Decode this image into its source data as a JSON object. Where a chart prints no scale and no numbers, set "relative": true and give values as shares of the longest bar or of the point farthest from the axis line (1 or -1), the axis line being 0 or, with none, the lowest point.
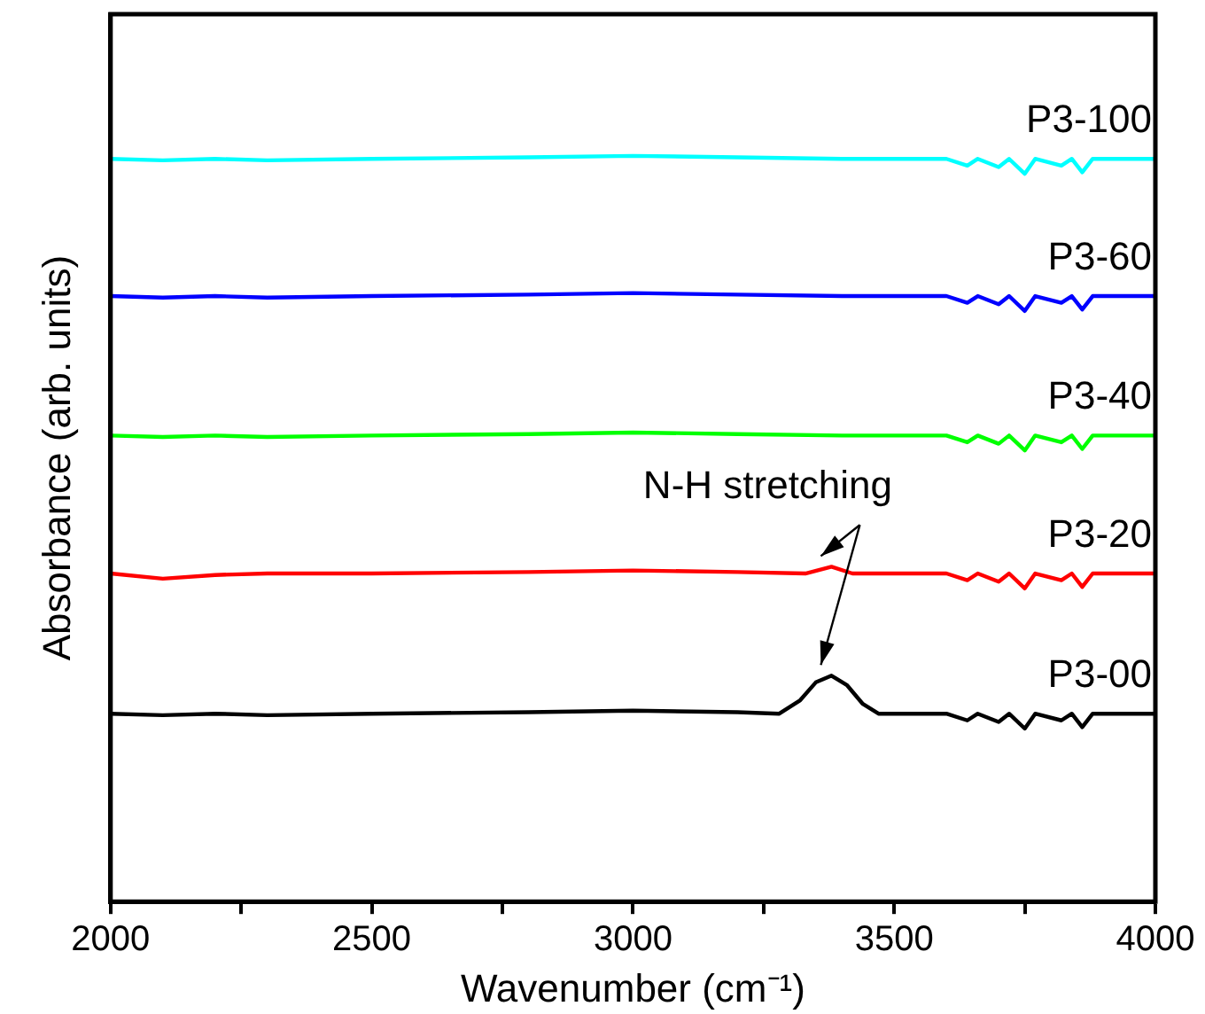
{
  "chart_data": {
    "type": "line",
    "xlabel": "Wavenumber (cm⁻¹)",
    "ylabel": "Absorbance (arb. units)",
    "relative": true,
    "xlim": [
      2000,
      4000
    ],
    "xticks": [
      2000,
      {
        "value": 2250,
        "label": null
      },
      2500,
      {
        "value": 2750,
        "label": null
      },
      3000,
      {
        "value": 3250,
        "label": null
      },
      3500,
      {
        "value": 3750,
        "label": null
      },
      4000
    ],
    "legend": false,
    "grid": false,
    "marker": "none",
    "line_style": "solid",
    "annotations": [
      {
        "text": "N-H stretching",
        "x": 3380,
        "y": 0.303
      }
    ],
    "series": [
      {
        "name": "P3-100",
        "color": "#00ffff",
        "x": [
          2000,
          2100,
          2200,
          2300,
          2500,
          2800,
          3000,
          3200,
          3400,
          3600,
          3640,
          3660,
          3700,
          3720,
          3750,
          3770,
          3820,
          3840,
          3860,
          3880,
          4000
        ],
        "values": [
          0.996,
          0.994,
          0.996,
          0.994,
          0.996,
          0.998,
          1,
          0.998,
          0.996,
          0.996,
          0.987,
          0.996,
          0.985,
          0.996,
          0.976,
          0.996,
          0.987,
          0.996,
          0.978,
          0.996,
          0.996
        ]
      },
      {
        "name": "P3-60",
        "color": "#0000ff",
        "x": [
          2000,
          2100,
          2200,
          2300,
          2500,
          2800,
          3000,
          3200,
          3400,
          3600,
          3640,
          3660,
          3700,
          3720,
          3750,
          3770,
          3820,
          3840,
          3860,
          3880,
          4000
        ],
        "values": [
          0.812,
          0.81,
          0.812,
          0.81,
          0.812,
          0.814,
          0.816,
          0.814,
          0.812,
          0.812,
          0.803,
          0.812,
          0.801,
          0.812,
          0.792,
          0.812,
          0.803,
          0.812,
          0.794,
          0.812,
          0.812
        ]
      },
      {
        "name": "P3-40",
        "color": "#00ff00",
        "x": [
          2000,
          2100,
          2200,
          2300,
          2500,
          2800,
          3000,
          3200,
          3400,
          3600,
          3640,
          3660,
          3700,
          3720,
          3750,
          3770,
          3820,
          3840,
          3860,
          3880,
          4000
        ],
        "values": [
          0.625,
          0.623,
          0.625,
          0.623,
          0.625,
          0.627,
          0.629,
          0.627,
          0.625,
          0.625,
          0.616,
          0.625,
          0.614,
          0.625,
          0.605,
          0.625,
          0.616,
          0.625,
          0.607,
          0.625,
          0.625
        ]
      },
      {
        "name": "P3-20",
        "color": "#ff0000",
        "x": [
          2000,
          2100,
          2200,
          2300,
          2500,
          2800,
          3000,
          3200,
          3330,
          3380,
          3420,
          3600,
          3640,
          3660,
          3700,
          3720,
          3750,
          3770,
          3820,
          3840,
          3860,
          3880,
          4000
        ],
        "values": [
          0.44,
          0.433,
          0.438,
          0.44,
          0.44,
          0.442,
          0.444,
          0.442,
          0.44,
          0.449,
          0.44,
          0.44,
          0.431,
          0.44,
          0.429,
          0.44,
          0.42,
          0.44,
          0.431,
          0.44,
          0.422,
          0.44,
          0.44
        ]
      },
      {
        "name": "P3-00",
        "color": "#000000",
        "x": [
          2000,
          2100,
          2200,
          2300,
          2500,
          2800,
          3000,
          3200,
          3280,
          3320,
          3350,
          3380,
          3410,
          3440,
          3470,
          3600,
          3640,
          3660,
          3700,
          3720,
          3750,
          3770,
          3820,
          3840,
          3860,
          3880,
          4000
        ],
        "values": [
          0.252,
          0.25,
          0.252,
          0.25,
          0.252,
          0.254,
          0.256,
          0.254,
          0.252,
          0.27,
          0.294,
          0.303,
          0.29,
          0.265,
          0.252,
          0.252,
          0.243,
          0.252,
          0.241,
          0.252,
          0.232,
          0.252,
          0.243,
          0.252,
          0.234,
          0.252,
          0.252
        ]
      }
    ]
  }
}
